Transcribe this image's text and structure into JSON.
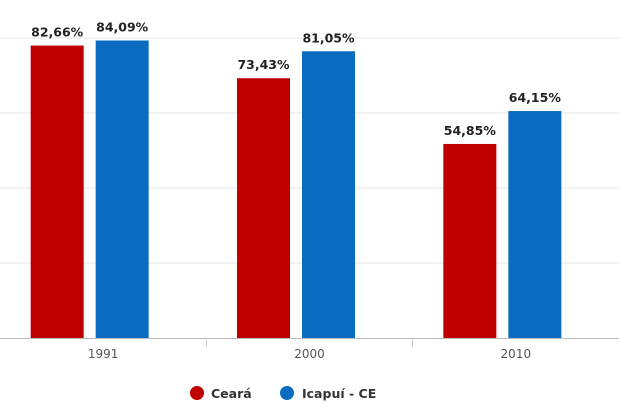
{
  "chart_data": {
    "type": "bar",
    "categories": [
      "1991",
      "2000",
      "2010"
    ],
    "series": [
      {
        "name": "Ceará",
        "color": "#c00000",
        "values": [
          82.66,
          73.43,
          54.85
        ],
        "labels": [
          "82,66%",
          "73,43%",
          "54,85%"
        ]
      },
      {
        "name": "Icapuí - CE",
        "color": "#0a6cc0",
        "values": [
          84.09,
          81.05,
          64.15
        ],
        "labels": [
          "84,09%",
          "81,05%",
          "64,15%"
        ]
      }
    ],
    "ylim": [
      0,
      90
    ],
    "grid": true,
    "legend": "bottom-center",
    "title": "",
    "xlabel": "",
    "ylabel": ""
  }
}
